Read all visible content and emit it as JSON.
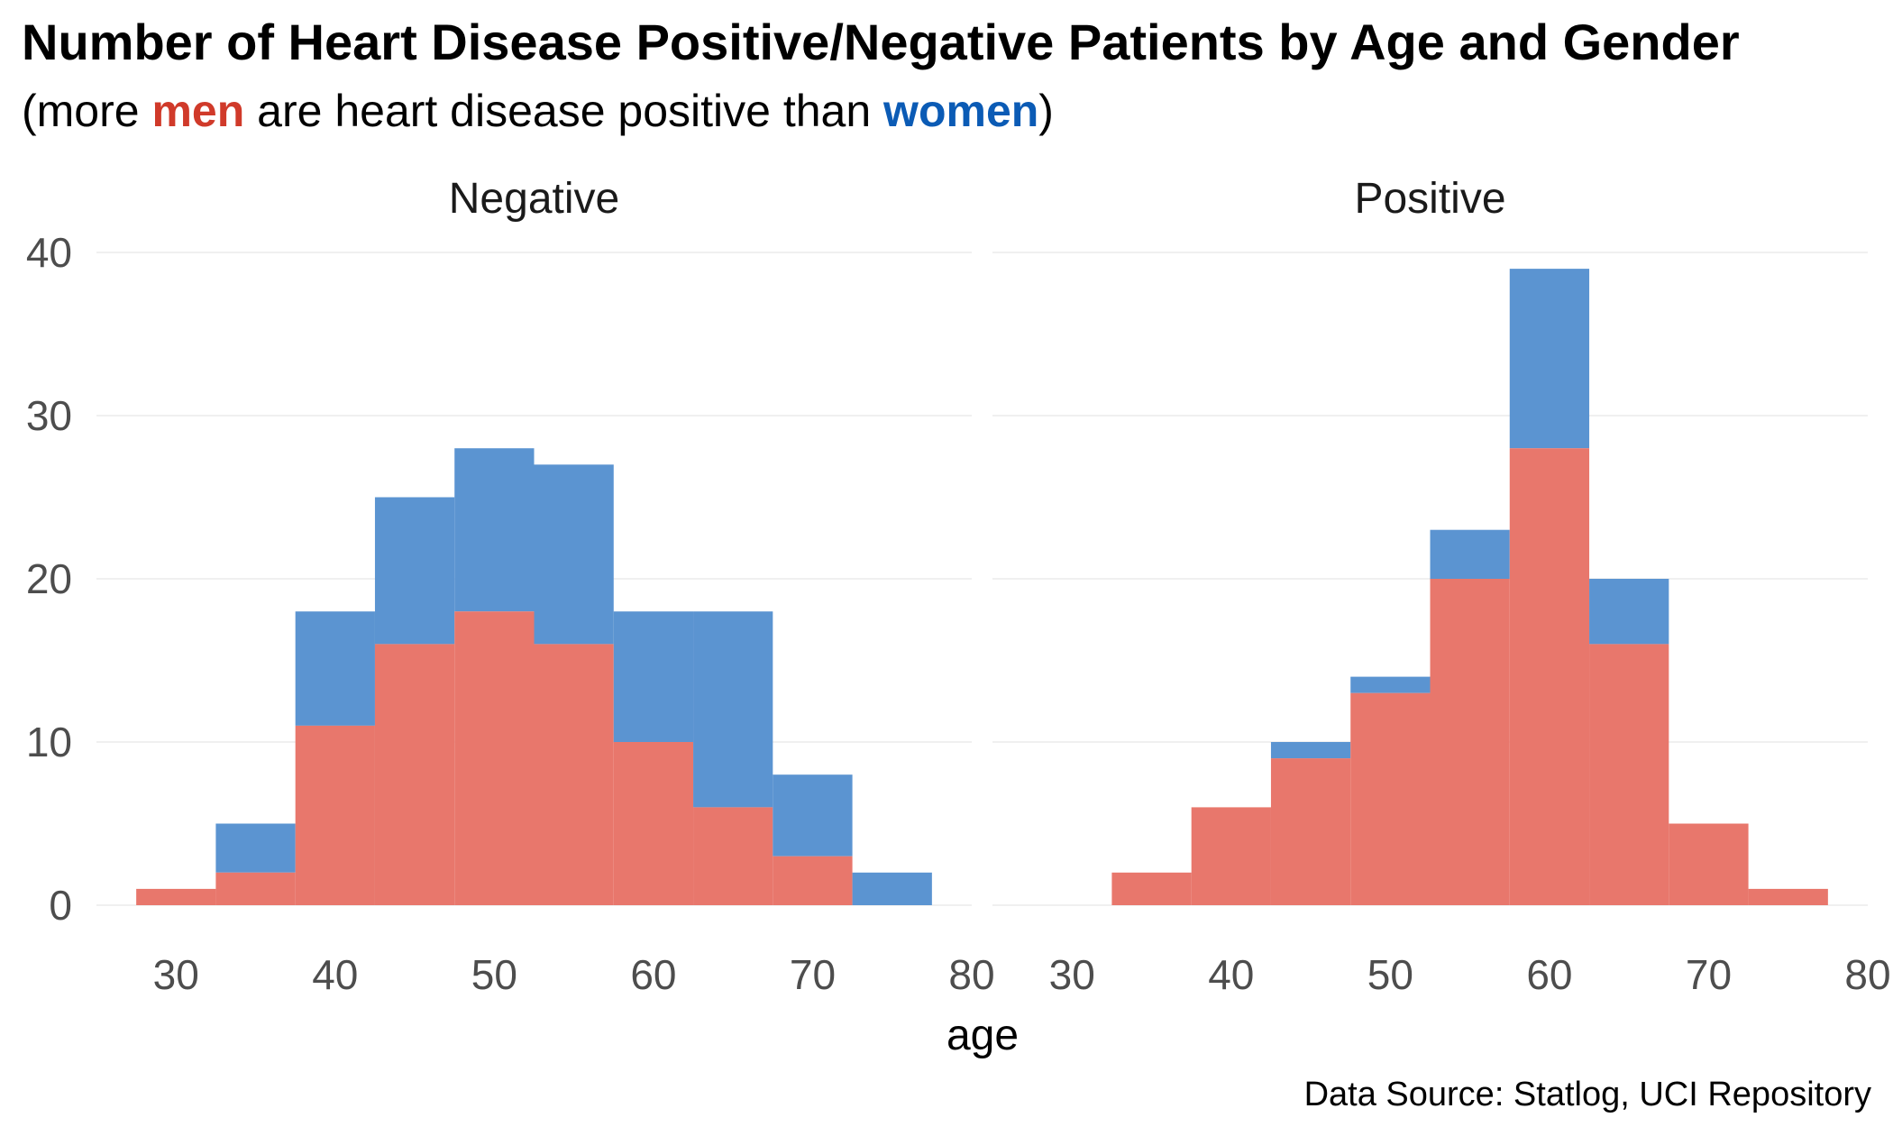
{
  "chart_data": {
    "type": "bar",
    "title": "Number of Heart Disease Positive/Negative Patients by Age and Gender",
    "subtitle": {
      "before": "(more ",
      "men": "men",
      "middle": " are heart disease positive than ",
      "women": "women",
      "after": ")"
    },
    "caption": "Data Source: Statlog, UCI Repository",
    "xlabel": "age",
    "ylabel": "",
    "xlim": [
      25,
      80
    ],
    "ylim": [
      0,
      42
    ],
    "xticks": [
      "30",
      "40",
      "50",
      "60",
      "70",
      "80"
    ],
    "yticks": [
      "0",
      "10",
      "20",
      "30",
      "40"
    ],
    "grid": true,
    "stacked": true,
    "bin_width": 5,
    "colors": {
      "men": "#e8776c",
      "women": "#5b94d1"
    },
    "facets": [
      {
        "name": "Negative",
        "bin_centers": [
          30,
          35,
          40,
          45,
          50,
          55,
          60,
          65,
          70,
          75
        ],
        "series": [
          {
            "name": "men",
            "values": [
              1,
              2,
              11,
              16,
              18,
              16,
              10,
              6,
              3,
              0
            ]
          },
          {
            "name": "women",
            "values": [
              0,
              3,
              7,
              9,
              10,
              11,
              8,
              12,
              5,
              2
            ]
          }
        ]
      },
      {
        "name": "Positive",
        "bin_centers": [
          35,
          40,
          45,
          50,
          55,
          60,
          65,
          70,
          75
        ],
        "series": [
          {
            "name": "men",
            "values": [
              2,
              6,
              9,
              13,
              20,
              28,
              16,
              5,
              1
            ]
          },
          {
            "name": "women",
            "values": [
              0,
              0,
              1,
              1,
              3,
              11,
              4,
              0,
              0
            ]
          }
        ]
      }
    ]
  }
}
